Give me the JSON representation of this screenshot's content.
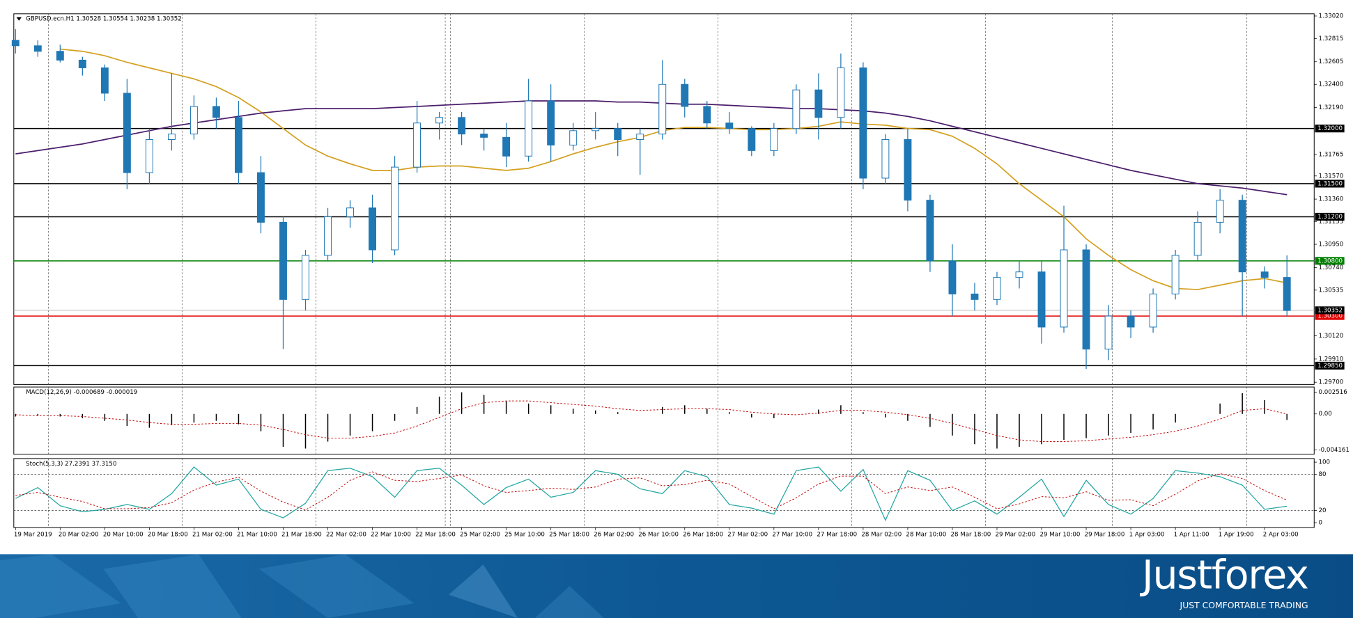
{
  "chart_data": [
    {
      "type": "candlestick",
      "title": "GBPUSD.ecn.H1 1.30528 1.30554 1.30238 1.30352",
      "categories": [
        "19 Mar 2019",
        null,
        "20 Mar 02:00",
        null,
        "20 Mar 10:00",
        null,
        "20 Mar 18:00",
        null,
        "21 Mar 02:00",
        null,
        "21 Mar 10:00",
        null,
        "21 Mar 18:00",
        null,
        "22 Mar 02:00",
        null,
        "22 Mar 10:00",
        null,
        "22 Mar 18:00",
        null,
        "25 Mar 02:00",
        null,
        "25 Mar 10:00",
        null,
        "25 Mar 18:00",
        null,
        "26 Mar 02:00",
        null,
        "26 Mar 10:00",
        null,
        "26 Mar 18:00",
        null,
        "27 Mar 02:00",
        null,
        "27 Mar 10:00",
        null,
        "27 Mar 18:00",
        null,
        "28 Mar 02:00",
        null,
        "28 Mar 10:00",
        null,
        "28 Mar 18:00",
        null,
        "29 Mar 02:00",
        null,
        "29 Mar 10:00",
        null,
        "29 Mar 18:00",
        null,
        "1 Apr 03:00",
        null,
        "1 Apr 11:00",
        null,
        "1 Apr 19:00",
        null,
        "2 Apr 03:00",
        null
      ],
      "open": [
        1.328,
        1.3275,
        1.327,
        1.3262,
        1.3255,
        1.3232,
        1.316,
        1.319,
        1.3195,
        1.322,
        1.321,
        1.316,
        1.3115,
        1.3045,
        1.3085,
        1.312,
        1.3128,
        1.309,
        1.3165,
        1.3205,
        1.321,
        1.3195,
        1.3192,
        1.3175,
        1.3225,
        1.3185,
        1.3198,
        1.32,
        1.319,
        1.3195,
        1.324,
        1.322,
        1.3205,
        1.32,
        1.318,
        1.32,
        1.3235,
        1.321,
        1.3255,
        1.3155,
        1.319,
        1.3135,
        1.308,
        1.305,
        1.3045,
        1.3065,
        1.307,
        1.302,
        1.309,
        1.3,
        1.303,
        1.302,
        1.305,
        1.3085,
        1.3115,
        1.3135,
        1.307,
        1.3065
      ],
      "high": [
        1.329,
        1.328,
        1.3276,
        1.3265,
        1.3258,
        1.3245,
        1.32,
        1.325,
        1.323,
        1.3228,
        1.3225,
        1.3175,
        1.312,
        1.309,
        1.3128,
        1.3135,
        1.314,
        1.3175,
        1.3225,
        1.3215,
        1.3215,
        1.32,
        1.3205,
        1.3245,
        1.324,
        1.3205,
        1.3215,
        1.3205,
        1.32,
        1.3262,
        1.3245,
        1.3225,
        1.3215,
        1.3202,
        1.3205,
        1.324,
        1.325,
        1.3268,
        1.326,
        1.3195,
        1.32,
        1.314,
        1.3095,
        1.306,
        1.307,
        1.308,
        1.308,
        1.313,
        1.3095,
        1.304,
        1.3035,
        1.3055,
        1.309,
        1.3125,
        1.3145,
        1.314,
        1.3075,
        1.3085
      ],
      "low": [
        1.3268,
        1.3265,
        1.326,
        1.3248,
        1.3225,
        1.3145,
        1.315,
        1.318,
        1.319,
        1.32,
        1.315,
        1.3105,
        1.3,
        1.3035,
        1.308,
        1.311,
        1.3078,
        1.3085,
        1.316,
        1.319,
        1.3185,
        1.318,
        1.3165,
        1.317,
        1.317,
        1.318,
        1.319,
        1.3175,
        1.3158,
        1.319,
        1.321,
        1.32,
        1.3195,
        1.3175,
        1.3175,
        1.3195,
        1.319,
        1.32,
        1.3145,
        1.315,
        1.3125,
        1.307,
        1.303,
        1.3035,
        1.304,
        1.3055,
        1.3005,
        1.3015,
        1.2982,
        1.299,
        1.301,
        1.3015,
        1.3045,
        1.308,
        1.3105,
        1.303,
        1.3055,
        1.303
      ],
      "close": [
        1.3275,
        1.327,
        1.3262,
        1.3255,
        1.3232,
        1.316,
        1.319,
        1.3195,
        1.322,
        1.321,
        1.316,
        1.3115,
        1.3045,
        1.3085,
        1.312,
        1.3128,
        1.309,
        1.3165,
        1.3205,
        1.321,
        1.3195,
        1.3192,
        1.3175,
        1.3225,
        1.3185,
        1.3198,
        1.32,
        1.319,
        1.3195,
        1.324,
        1.322,
        1.3205,
        1.32,
        1.318,
        1.32,
        1.3235,
        1.321,
        1.3255,
        1.3155,
        1.319,
        1.3135,
        1.308,
        1.305,
        1.3045,
        1.3065,
        1.307,
        1.302,
        1.309,
        1.3,
        1.303,
        1.302,
        1.305,
        1.3085,
        1.3115,
        1.3135,
        1.307,
        1.3065,
        1.3035
      ],
      "up_color": "#ffffff",
      "down_color": "#1f77b4",
      "wick_color": "#1f77b4",
      "moving_averages": [
        {
          "color": "#d4a020",
          "values": [
            null,
            null,
            1.3272,
            1.327,
            1.3266,
            1.326,
            1.3255,
            1.325,
            1.3245,
            1.3238,
            1.3228,
            1.3215,
            1.32,
            1.3185,
            1.3175,
            1.3168,
            1.3162,
            1.3162,
            1.3165,
            1.3166,
            1.3166,
            1.3164,
            1.3162,
            1.3164,
            1.317,
            1.3177,
            1.3183,
            1.3188,
            1.3192,
            1.3198,
            1.3201,
            1.3201,
            1.32,
            1.3199,
            1.3199,
            1.32,
            1.3202,
            1.3206,
            1.3204,
            1.3203,
            1.32,
            1.3199,
            1.3193,
            1.3182,
            1.3168,
            1.315,
            1.3135,
            1.312,
            1.31,
            1.3085,
            1.3072,
            1.3062,
            1.3055,
            1.3054,
            1.3058,
            1.3062,
            1.3064,
            1.306
          ]
        },
        {
          "color": "#4b1d6b",
          "values": [
            1.3177,
            1.318,
            1.3183,
            1.3186,
            1.319,
            1.3194,
            1.3198,
            1.3202,
            1.3205,
            1.3208,
            1.3211,
            1.3214,
            1.3216,
            1.3218,
            1.3218,
            1.3218,
            1.3218,
            1.3219,
            1.322,
            1.3221,
            1.3222,
            1.3223,
            1.3224,
            1.3225,
            1.3225,
            1.3225,
            1.3225,
            1.3224,
            1.3224,
            1.3223,
            1.3222,
            1.3222,
            1.3221,
            1.322,
            1.3219,
            1.3218,
            1.3218,
            1.3217,
            1.3216,
            1.3214,
            1.3211,
            1.3207,
            1.3202,
            1.3197,
            1.3192,
            1.3187,
            1.3182,
            1.3177,
            1.3172,
            1.3167,
            1.3162,
            1.3158,
            1.3154,
            1.315,
            1.3148,
            1.3146,
            1.3143,
            1.314
          ]
        }
      ],
      "levels": [
        {
          "value": 1.32,
          "label": "1.32000",
          "color": "#000000"
        },
        {
          "value": 1.315,
          "label": "1.31500",
          "color": "#000000"
        },
        {
          "value": 1.312,
          "label": "1.31200",
          "color": "#000000"
        },
        {
          "value": 1.308,
          "label": "1.30800",
          "color": "#008000"
        },
        {
          "value": 1.303,
          "label": "1.30300",
          "color": "#e00000"
        },
        {
          "value": 1.2985,
          "label": "1.29850",
          "color": "#000000"
        }
      ],
      "current_price": {
        "value": 1.30352,
        "label": "1.30352"
      },
      "ylim": [
        1.2968,
        1.3304
      ],
      "yticks": [
        {
          "value": 1.3302,
          "label": "1.33020"
        },
        {
          "value": 1.32815,
          "label": "1.32815"
        },
        {
          "value": 1.32605,
          "label": "1.32605"
        },
        {
          "value": 1.324,
          "label": "1.32400"
        },
        {
          "value": 1.3219,
          "label": "1.32190"
        },
        {
          "value": 1.31765,
          "label": "1.31765"
        },
        {
          "value": 1.3157,
          "label": "1.31570"
        },
        {
          "value": 1.3136,
          "label": "1.31360"
        },
        {
          "value": 1.31155,
          "label": "1.31155"
        },
        {
          "value": 1.3095,
          "label": "1.30950"
        },
        {
          "value": 1.3074,
          "label": "1.30740"
        },
        {
          "value": 1.30535,
          "label": "1.30535"
        },
        {
          "value": 1.3012,
          "label": "1.30120"
        },
        {
          "value": 1.2991,
          "label": "1.29910"
        },
        {
          "value": 1.297,
          "label": "1.29700"
        }
      ]
    },
    {
      "type": "macd",
      "title": "MACD(12,26,9) -0.000689 -0.000019",
      "histogram": [
        -0.0003,
        -0.0002,
        -0.0003,
        -0.0005,
        -0.0008,
        -0.0014,
        -0.0016,
        -0.0013,
        -0.001,
        -0.0008,
        -0.0012,
        -0.002,
        -0.0038,
        -0.004,
        -0.0032,
        -0.0025,
        -0.002,
        -0.0008,
        0.0008,
        0.002,
        0.0025,
        0.0022,
        0.0015,
        0.0012,
        0.001,
        0.0006,
        0.0004,
        0.0002,
        0.0,
        0.0008,
        0.001,
        0.0006,
        0.0002,
        -0.0004,
        -0.0005,
        0.0,
        0.0005,
        0.001,
        0.0002,
        -0.0004,
        -0.0008,
        -0.0015,
        -0.0025,
        -0.0035,
        -0.004,
        -0.0038,
        -0.0035,
        -0.003,
        -0.0028,
        -0.0025,
        -0.0022,
        -0.0018,
        -0.001,
        0.0,
        0.0012,
        0.0024,
        0.0016,
        -0.0007
      ],
      "histogram_color": "#000000",
      "signal": [
        -0.0001,
        -0.0002,
        -0.0002,
        -0.0003,
        -0.0005,
        -0.0007,
        -0.001,
        -0.0012,
        -0.0012,
        -0.0011,
        -0.0011,
        -0.0013,
        -0.0018,
        -0.0024,
        -0.0028,
        -0.0028,
        -0.0026,
        -0.0022,
        -0.0014,
        -0.0004,
        0.0006,
        0.0013,
        0.0015,
        0.0015,
        0.0013,
        0.0011,
        0.0009,
        0.0006,
        0.0004,
        0.0005,
        0.0006,
        0.0006,
        0.0005,
        0.0002,
        0.0,
        -0.0001,
        0.0001,
        0.0004,
        0.0004,
        0.0002,
        -0.0001,
        -0.0005,
        -0.0011,
        -0.0018,
        -0.0025,
        -0.003,
        -0.0032,
        -0.0032,
        -0.0031,
        -0.0029,
        -0.0027,
        -0.0024,
        -0.002,
        -0.0014,
        -0.0006,
        0.0004,
        0.0006,
        -2e-05
      ],
      "signal_color": "#c00000",
      "ylim": [
        -0.00466,
        0.00311
      ],
      "yticks": [
        0.002516,
        {
          "value": 0,
          "label": "0.00"
        },
        -0.004161
      ]
    },
    {
      "type": "stochastic",
      "title": "Stoch(5,3,3) 27.2391 37.3150",
      "k": [
        40,
        58,
        28,
        18,
        22,
        30,
        22,
        48,
        92,
        62,
        72,
        22,
        8,
        32,
        86,
        90,
        76,
        42,
        86,
        90,
        62,
        30,
        58,
        72,
        42,
        50,
        86,
        80,
        56,
        48,
        86,
        76,
        30,
        24,
        14,
        86,
        92,
        52,
        88,
        4,
        86,
        70,
        20,
        36,
        14,
        42,
        72,
        10,
        70,
        30,
        14,
        40,
        86,
        82,
        76,
        62,
        22,
        27.24
      ],
      "k_color": "#20a5a0",
      "d": [
        45,
        50,
        42,
        35,
        23,
        23,
        25,
        33,
        54,
        67,
        75,
        52,
        34,
        21,
        42,
        70,
        84,
        70,
        68,
        73,
        79,
        61,
        50,
        53,
        57,
        55,
        59,
        72,
        74,
        61,
        63,
        70,
        64,
        43,
        23,
        41,
        64,
        77,
        77,
        48,
        59,
        53,
        59,
        42,
        23,
        31,
        43,
        41,
        51,
        37,
        38,
        28,
        47,
        69,
        81,
        73,
        53,
        37.3
      ],
      "d_color": "#c00000",
      "levels": [
        80,
        20
      ],
      "ylim": [
        -8,
        106
      ],
      "yticks": [
        100,
        80,
        20,
        0
      ]
    }
  ],
  "footer": {
    "brand": "Justforex",
    "tagline": "JUST COMFORTABLE TRADING"
  }
}
